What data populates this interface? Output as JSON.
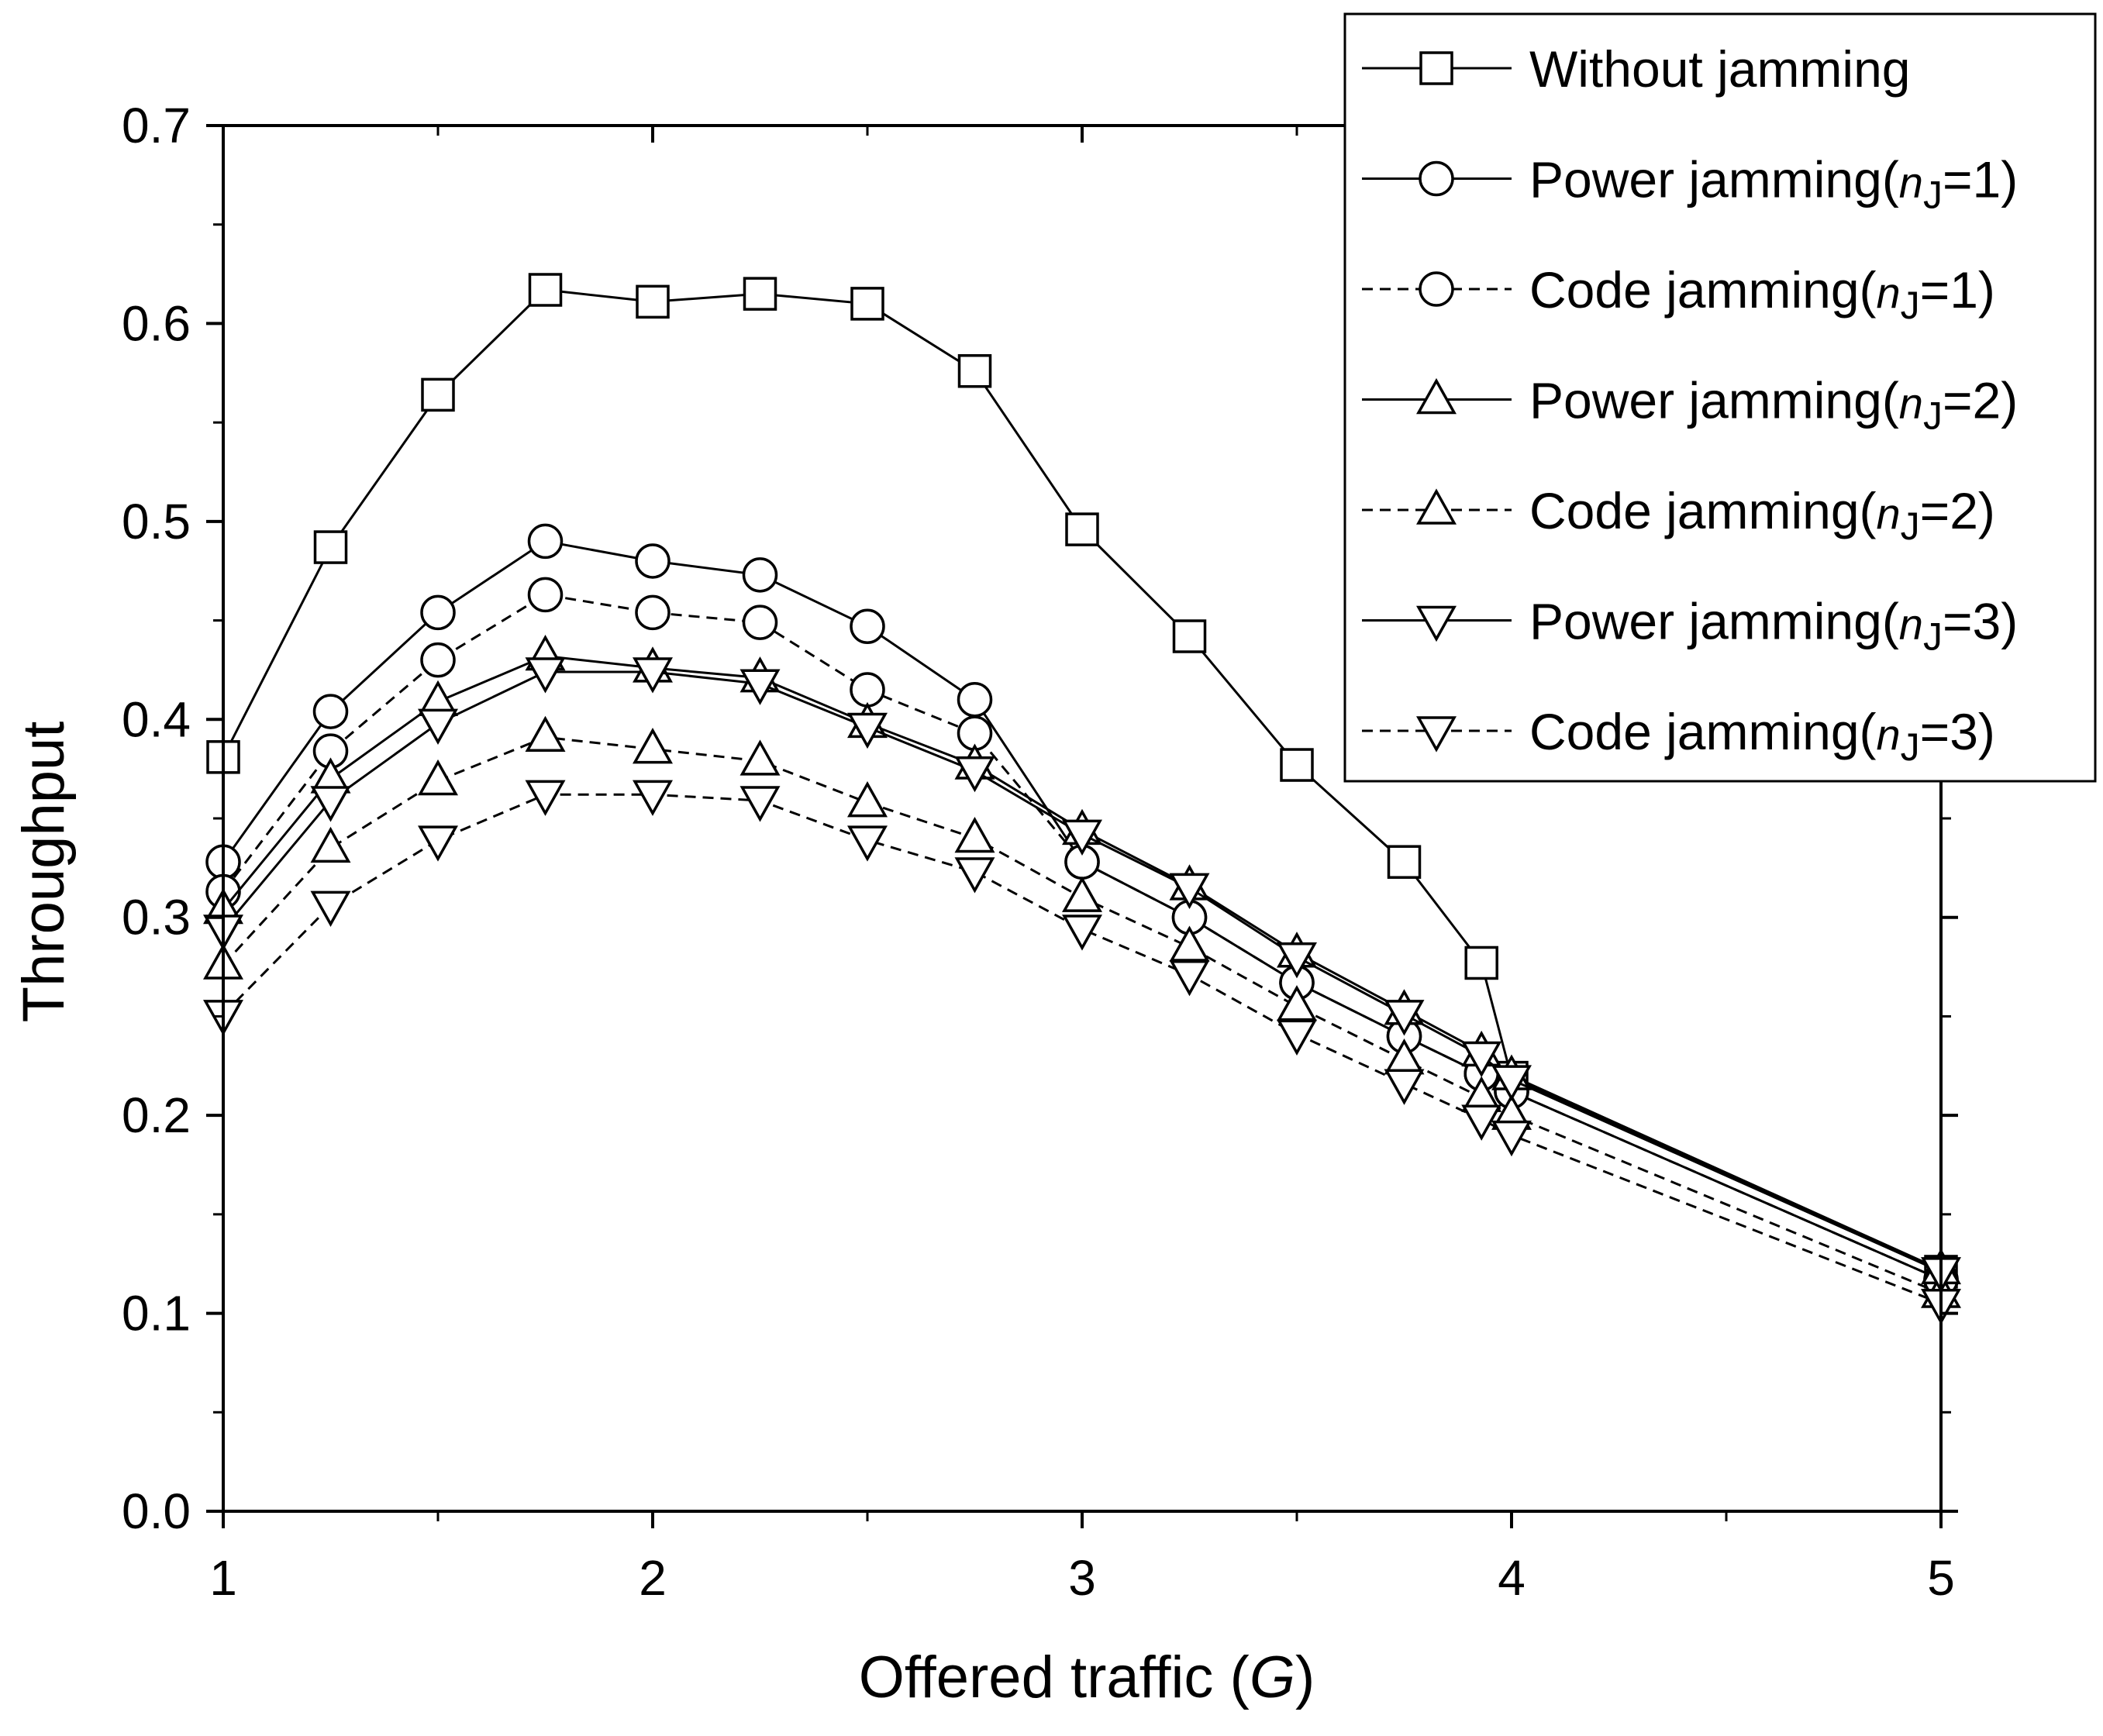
{
  "chart_data": {
    "type": "line",
    "title": "",
    "xlabel": "Offered traffic (",
    "xlabel_italic": "G",
    "xlabel_close": ")",
    "ylabel": "Throughput",
    "xlim": [
      1,
      5
    ],
    "ylim": [
      0.0,
      0.7
    ],
    "xticks": [
      1,
      2,
      3,
      4,
      5
    ],
    "xtick_labels": [
      "1",
      "2",
      "3",
      "4",
      "5"
    ],
    "yticks": [
      0.0,
      0.1,
      0.2,
      0.3,
      0.4,
      0.5,
      0.6,
      0.7
    ],
    "ytick_labels": [
      "0.0",
      "0.1",
      "0.2",
      "0.3",
      "0.4",
      "0.5",
      "0.6",
      "0.7"
    ],
    "grid": false,
    "legend_position": "top-right",
    "x": [
      1,
      1.25,
      1.5,
      1.75,
      2,
      2.25,
      2.5,
      2.75,
      3,
      3.25,
      3.5,
      3.75,
      3.93,
      4,
      5
    ],
    "series": [
      {
        "name": "Without jamming",
        "marker": "square",
        "linestyle": "solid",
        "x": [
          1,
          1.25,
          1.5,
          1.75,
          2,
          2.25,
          2.5,
          2.75,
          3,
          3.25,
          3.5,
          3.75,
          3.93,
          4,
          5
        ],
        "values": [
          0.381,
          0.487,
          0.564,
          0.617,
          0.611,
          0.615,
          0.61,
          0.576,
          0.496,
          0.442,
          0.377,
          0.328,
          0.277,
          0.219,
          0.121
        ]
      },
      {
        "name": "Power jamming(",
        "name_italic": "n",
        "name_sub": "J",
        "name_rest": "=1)",
        "marker": "circle",
        "linestyle": "solid",
        "x": [
          1,
          1.25,
          1.5,
          1.75,
          2,
          2.25,
          2.5,
          2.75,
          3,
          3.25,
          3.5,
          3.75,
          3.93,
          4,
          5
        ],
        "values": [
          0.328,
          0.404,
          0.454,
          0.49,
          0.48,
          0.473,
          0.447,
          0.41,
          0.328,
          0.3,
          0.267,
          0.24,
          0.221,
          0.212,
          0.117
        ]
      },
      {
        "name": "Code jamming(",
        "name_italic": "n",
        "name_sub": "J",
        "name_rest": "=1)",
        "marker": "circle",
        "linestyle": "dashed",
        "x": [
          1,
          1.25,
          1.5,
          1.75,
          2,
          2.25,
          2.5,
          2.75,
          3,
          3.25,
          3.5,
          3.75,
          3.93,
          4,
          5
        ],
        "values": [
          0.313,
          0.384,
          0.43,
          0.463,
          0.454,
          0.449,
          0.415,
          0.393,
          0.328,
          0.3,
          0.267,
          0.24,
          0.221,
          0.212,
          0.117
        ]
      },
      {
        "name": "Power jamming(",
        "name_italic": "n",
        "name_sub": "J",
        "name_rest": "=2)",
        "marker": "triangle-up",
        "linestyle": "solid",
        "x": [
          1,
          1.25,
          1.5,
          1.75,
          2,
          2.25,
          2.5,
          2.75,
          3,
          3.25,
          3.5,
          3.75,
          3.93,
          4,
          5
        ],
        "values": [
          0.304,
          0.37,
          0.409,
          0.432,
          0.426,
          0.421,
          0.398,
          0.377,
          0.344,
          0.316,
          0.282,
          0.253,
          0.232,
          0.22,
          0.122
        ]
      },
      {
        "name": "Code jamming(",
        "name_italic": "n",
        "name_sub": "J",
        "name_rest": "=2)",
        "marker": "triangle-up",
        "linestyle": "dashed",
        "x": [
          1,
          1.25,
          1.5,
          1.75,
          2,
          2.25,
          2.5,
          2.75,
          3,
          3.25,
          3.5,
          3.75,
          3.93,
          4,
          5
        ],
        "values": [
          0.276,
          0.335,
          0.369,
          0.391,
          0.385,
          0.379,
          0.358,
          0.34,
          0.31,
          0.285,
          0.255,
          0.228,
          0.209,
          0.2,
          0.11
        ]
      },
      {
        "name": "Power jamming(",
        "name_italic": "n",
        "name_sub": "J",
        "name_rest": "=3)",
        "marker": "triangle-down",
        "linestyle": "solid",
        "x": [
          1,
          1.25,
          1.5,
          1.75,
          2,
          2.25,
          2.5,
          2.75,
          3,
          3.25,
          3.5,
          3.75,
          3.93,
          4,
          5
        ],
        "values": [
          0.294,
          0.359,
          0.398,
          0.424,
          0.424,
          0.418,
          0.396,
          0.374,
          0.342,
          0.315,
          0.28,
          0.251,
          0.23,
          0.218,
          0.121
        ]
      },
      {
        "name": "Code jamming(",
        "name_italic": "n",
        "name_sub": "J",
        "name_rest": "=3)",
        "marker": "triangle-down",
        "linestyle": "dashed",
        "x": [
          1,
          1.25,
          1.5,
          1.75,
          2,
          2.25,
          2.5,
          2.75,
          3,
          3.25,
          3.5,
          3.75,
          3.93,
          4,
          5
        ],
        "values": [
          0.251,
          0.306,
          0.339,
          0.362,
          0.362,
          0.359,
          0.339,
          0.323,
          0.294,
          0.271,
          0.241,
          0.216,
          0.198,
          0.19,
          0.105
        ]
      }
    ]
  }
}
